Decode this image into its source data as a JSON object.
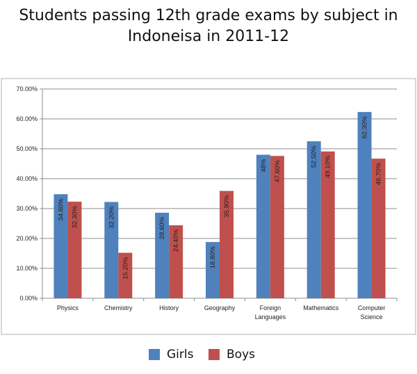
{
  "chart_data": {
    "type": "bar",
    "title": "Students passing 12th grade exams by subject in Indoneisa in 2011-12",
    "title_lines": [
      "Students passing 12th grade exams by subject in",
      "Indoneisa in 2011-12"
    ],
    "categories": [
      "Physics",
      "Chemistry",
      "History",
      "Geography",
      "Foreign Languages",
      "Mathematics",
      "Computer Science"
    ],
    "category_lines": [
      [
        "Physics"
      ],
      [
        "Chemistry"
      ],
      [
        "History"
      ],
      [
        "Geography"
      ],
      [
        "Foreign",
        "Languages"
      ],
      [
        "Mathematics"
      ],
      [
        "Computer",
        "Science"
      ]
    ],
    "series": [
      {
        "name": "Girls",
        "color": "#4f81bd",
        "values": [
          34.8,
          32.2,
          28.6,
          18.8,
          48,
          52.5,
          62.3
        ],
        "labels": [
          "34.80%",
          "32.20%",
          "28.60%",
          "18.80%",
          "48%",
          "52.50%",
          "62.30%"
        ]
      },
      {
        "name": "Boys",
        "color": "#c0504d",
        "values": [
          32.3,
          15.2,
          24.4,
          35.9,
          47.6,
          49.1,
          46.7
        ],
        "labels": [
          "32.30%",
          "15.20%",
          "24.40%",
          "35.90%",
          "47.60%",
          "49.10%",
          "46.70%"
        ]
      }
    ],
    "ylim": [
      0,
      70
    ],
    "yticks": [
      0,
      10,
      20,
      30,
      40,
      50,
      60,
      70
    ],
    "ytick_labels": [
      "0.00%",
      "10.00%",
      "20.00%",
      "30.00%",
      "40.00%",
      "50.00%",
      "60.00%",
      "70.00%"
    ],
    "xlabel": "",
    "ylabel": "",
    "grid": true,
    "legend_position": "bottom"
  }
}
